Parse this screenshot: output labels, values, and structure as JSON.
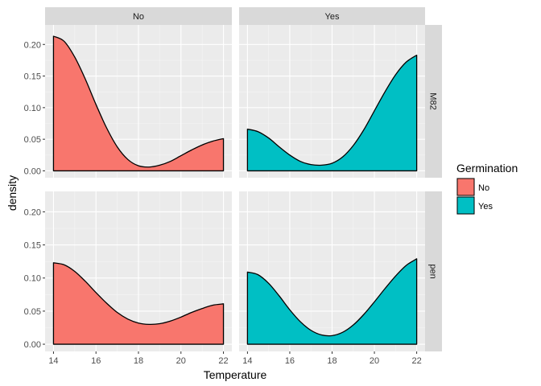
{
  "chart_data": {
    "type": "area",
    "subtype": "faceted density",
    "xlabel": "Temperature",
    "ylabel": "density",
    "xlim": [
      14,
      22
    ],
    "ylim": [
      0,
      0.22
    ],
    "x_ticks": [
      14,
      16,
      18,
      20,
      22
    ],
    "y_ticks": [
      0.0,
      0.05,
      0.1,
      0.15,
      0.2
    ],
    "y_tick_labels": [
      "0.00",
      "0.05",
      "0.10",
      "0.15",
      "0.20"
    ],
    "facet_cols": [
      "No",
      "Yes"
    ],
    "facet_rows": [
      "M82",
      "pen"
    ],
    "grid": true,
    "legend": {
      "title": "Germination",
      "placement": "right",
      "entries": [
        {
          "label": "No",
          "color": "#F8766D"
        },
        {
          "label": "Yes",
          "color": "#00BFC4"
        }
      ]
    },
    "panels": [
      {
        "row": "M82",
        "col": "No",
        "fill": "#F8766D",
        "x": [
          14,
          14.5,
          15,
          15.5,
          16,
          16.5,
          17,
          17.5,
          18,
          18.5,
          19,
          19.5,
          20,
          20.5,
          21,
          21.5,
          22
        ],
        "y": [
          0.213,
          0.205,
          0.18,
          0.145,
          0.105,
          0.068,
          0.038,
          0.018,
          0.008,
          0.006,
          0.009,
          0.015,
          0.024,
          0.033,
          0.041,
          0.047,
          0.051
        ]
      },
      {
        "row": "M82",
        "col": "Yes",
        "fill": "#00BFC4",
        "x": [
          14,
          14.5,
          15,
          15.5,
          16,
          16.5,
          17,
          17.5,
          18,
          18.5,
          19,
          19.5,
          20,
          20.5,
          21,
          21.5,
          22
        ],
        "y": [
          0.066,
          0.062,
          0.052,
          0.038,
          0.025,
          0.015,
          0.01,
          0.009,
          0.012,
          0.022,
          0.04,
          0.065,
          0.095,
          0.125,
          0.152,
          0.172,
          0.183
        ]
      },
      {
        "row": "pen",
        "col": "No",
        "fill": "#F8766D",
        "x": [
          14,
          14.5,
          15,
          15.5,
          16,
          16.5,
          17,
          17.5,
          18,
          18.5,
          19,
          19.5,
          20,
          20.5,
          21,
          21.5,
          22
        ],
        "y": [
          0.123,
          0.12,
          0.11,
          0.095,
          0.078,
          0.062,
          0.048,
          0.038,
          0.032,
          0.03,
          0.031,
          0.035,
          0.041,
          0.048,
          0.054,
          0.059,
          0.061
        ]
      },
      {
        "row": "pen",
        "col": "Yes",
        "fill": "#00BFC4",
        "x": [
          14,
          14.5,
          15,
          15.5,
          16,
          16.5,
          17,
          17.5,
          18,
          18.5,
          19,
          19.5,
          20,
          20.5,
          21,
          21.5,
          22
        ],
        "y": [
          0.109,
          0.105,
          0.092,
          0.073,
          0.052,
          0.034,
          0.021,
          0.014,
          0.013,
          0.018,
          0.029,
          0.045,
          0.064,
          0.084,
          0.103,
          0.119,
          0.129
        ]
      }
    ]
  },
  "colors": {
    "panel_bg": "#EBEBEB",
    "grid_major": "#FFFFFF",
    "strip_bg": "#D9D9D9",
    "outline": "#000000"
  }
}
